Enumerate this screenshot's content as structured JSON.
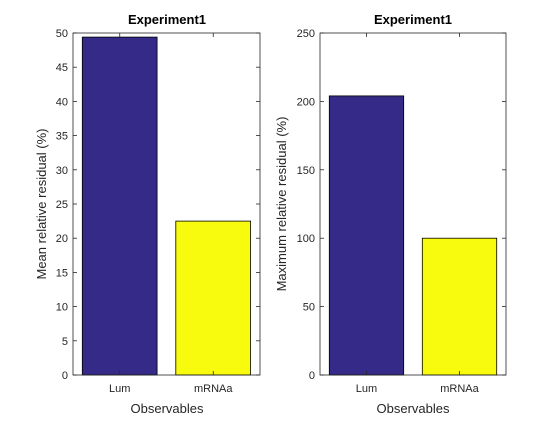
{
  "chart_data": [
    {
      "type": "bar",
      "title": "Experiment1",
      "xlabel": "Observables",
      "ylabel": "Mean relative residual (%)",
      "categories": [
        "Lum",
        "mRNAa"
      ],
      "values": [
        49.4,
        22.5
      ],
      "bar_colors": [
        "#352a87",
        "#f9fb0e"
      ],
      "ylim": [
        0,
        50
      ],
      "yticks": [
        0,
        5,
        10,
        15,
        20,
        25,
        30,
        35,
        40,
        45,
        50
      ],
      "grid": false,
      "legend": "none"
    },
    {
      "type": "bar",
      "title": "Experiment1",
      "xlabel": "Observables",
      "ylabel": "Maximum relative residual (%)",
      "categories": [
        "Lum",
        "mRNAa"
      ],
      "values": [
        204,
        100
      ],
      "bar_colors": [
        "#352a87",
        "#f9fb0e"
      ],
      "ylim": [
        0,
        250
      ],
      "yticks": [
        0,
        50,
        100,
        150,
        200,
        250
      ],
      "grid": false,
      "legend": "none"
    }
  ]
}
